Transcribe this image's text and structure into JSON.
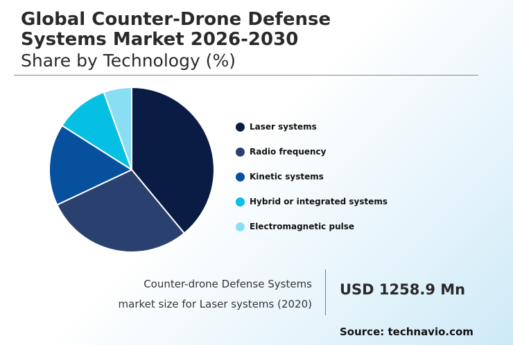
{
  "header": {
    "title_line1": "Global Counter-Drone Defense",
    "title_line2": "Systems Market 2026-2030",
    "subtitle": "Share by Technology (%)"
  },
  "chart_data": {
    "type": "pie",
    "title": "Global Counter-Drone Defense Systems Market 2026-2030",
    "subtitle": "Share by Technology (%)",
    "legend_position": "right",
    "categories": [
      "Laser systems",
      "Radio frequency",
      "Kinetic systems",
      "Hybrid or integrated systems",
      "Electromagnetic pulse"
    ],
    "values": [
      39,
      29,
      16,
      10.5,
      5.5
    ],
    "colors": [
      "#0a1c44",
      "#2a4170",
      "#06509e",
      "#06c0e3",
      "#8adef3"
    ]
  },
  "stat": {
    "label_line1": "Counter-drone Defense Systems",
    "label_line2": "market size for Laser systems (2020)",
    "value": "USD 1258.9 Mn"
  },
  "footer": {
    "source": "Source: technavio.com"
  }
}
